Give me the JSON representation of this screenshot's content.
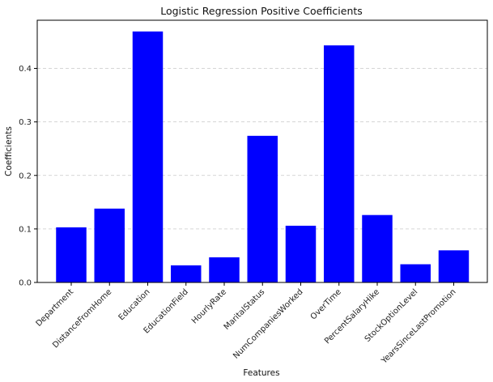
{
  "chart_data": {
    "type": "bar",
    "title": "Logistic Regression Positive Coefficients",
    "xlabel": "Features",
    "ylabel": "Coefficients",
    "categories": [
      "Department",
      "DistanceFromHome",
      "Education",
      "EducationField",
      "HourlyRate",
      "MaritalStatus",
      "NumCompaniesWorked",
      "OverTime",
      "PercentSalaryHike",
      "StockOptionLevel",
      "YearsSinceLastPromotion"
    ],
    "values": [
      0.103,
      0.138,
      0.469,
      0.032,
      0.047,
      0.274,
      0.106,
      0.443,
      0.126,
      0.034,
      0.06
    ],
    "ylim": [
      0,
      0.49
    ],
    "yticks": [
      "0.0",
      "0.1",
      "0.2",
      "0.3",
      "0.4"
    ],
    "grid": "horizontal dashed",
    "bar_color": "#0000ff"
  }
}
